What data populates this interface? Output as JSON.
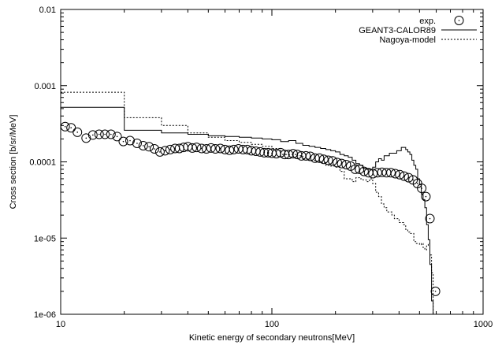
{
  "chart_data": {
    "type": "line",
    "title": "",
    "xlabel": "Kinetic energy of secondary neutrons[MeV]",
    "ylabel": "Cross section [b/sr/MeV]",
    "xscale": "log",
    "yscale": "log",
    "xlim": [
      10,
      1000
    ],
    "ylim": [
      1e-06,
      0.01
    ],
    "xticks": [
      {
        "v": 10,
        "label": "10"
      },
      {
        "v": 100,
        "label": "100"
      },
      {
        "v": 1000,
        "label": "1000"
      }
    ],
    "yticks": [
      {
        "v": 0.01,
        "label": "0.01"
      },
      {
        "v": 0.001,
        "label": "0.001"
      },
      {
        "v": 0.0001,
        "label": "0.0001"
      },
      {
        "v": 1e-05,
        "label": "1e-05"
      },
      {
        "v": 1e-06,
        "label": "1e-06"
      }
    ],
    "grid": false,
    "legend_position": "top-right",
    "series": [
      {
        "name": "exp.",
        "kind": "points",
        "points": [
          [
            10.5,
            0.00029
          ],
          [
            11.2,
            0.00028
          ],
          [
            12.0,
            0.000245
          ],
          [
            13.2,
            0.000205
          ],
          [
            14.2,
            0.000225
          ],
          [
            15.2,
            0.00023
          ],
          [
            16.2,
            0.00023
          ],
          [
            17.3,
            0.00023
          ],
          [
            18.5,
            0.000215
          ],
          [
            19.8,
            0.000185
          ],
          [
            21.3,
            0.00019
          ],
          [
            23.0,
            0.000175
          ],
          [
            24.6,
            0.000163
          ],
          [
            26.2,
            0.000158
          ],
          [
            27.8,
            0.000148
          ],
          [
            29.5,
            0.000135
          ],
          [
            31.2,
            0.00014
          ],
          [
            33.0,
            0.000145
          ],
          [
            34.8,
            0.00015
          ],
          [
            36.5,
            0.00015
          ],
          [
            38.2,
            0.000155
          ],
          [
            40.0,
            0.000158
          ],
          [
            42.0,
            0.000152
          ],
          [
            44.0,
            0.000155
          ],
          [
            46.5,
            0.00015
          ],
          [
            49.0,
            0.000148
          ],
          [
            51.5,
            0.000152
          ],
          [
            54.0,
            0.000148
          ],
          [
            57.0,
            0.00015
          ],
          [
            60.0,
            0.000145
          ],
          [
            63.0,
            0.000142
          ],
          [
            66.0,
            0.000145
          ],
          [
            69.5,
            0.000148
          ],
          [
            73.0,
            0.000145
          ],
          [
            76.5,
            0.000145
          ],
          [
            80.0,
            0.00014
          ],
          [
            84.0,
            0.000138
          ],
          [
            88.0,
            0.000135
          ],
          [
            92.0,
            0.000132
          ],
          [
            96.0,
            0.000132
          ],
          [
            100.0,
            0.00013
          ],
          [
            105.0,
            0.000128
          ],
          [
            110.0,
            0.000132
          ],
          [
            115.0,
            0.000125
          ],
          [
            120.0,
            0.000125
          ],
          [
            126.0,
            0.000128
          ],
          [
            132.0,
            0.000125
          ],
          [
            138.0,
            0.00012
          ],
          [
            145.0,
            0.00012
          ],
          [
            152.0,
            0.000118
          ],
          [
            160.0,
            0.000112
          ],
          [
            168.0,
            0.000112
          ],
          [
            176.0,
            0.000108
          ],
          [
            185.0,
            0.000105
          ],
          [
            194.0,
            0.000103
          ],
          [
            204.0,
            9.8e-05
          ],
          [
            214.0,
            9.5e-05
          ],
          [
            225.0,
            9.2e-05
          ],
          [
            236.0,
            8.8e-05
          ],
          [
            248.0,
            8e-05
          ],
          [
            260.0,
            8e-05
          ],
          [
            273.0,
            7.5e-05
          ],
          [
            287.0,
            7.2e-05
          ],
          [
            301.0,
            7e-05
          ],
          [
            316.0,
            7.2e-05
          ],
          [
            332.0,
            7.3e-05
          ],
          [
            349.0,
            7.2e-05
          ],
          [
            366.0,
            7.2e-05
          ],
          [
            384.0,
            7e-05
          ],
          [
            403.0,
            6.8e-05
          ],
          [
            423.0,
            6.5e-05
          ],
          [
            444.0,
            6.2e-05
          ],
          [
            466.0,
            5.8e-05
          ],
          [
            489.0,
            5.2e-05
          ],
          [
            512.0,
            4.5e-05
          ],
          [
            536.0,
            3.5e-05
          ],
          [
            560.0,
            1.8e-05
          ],
          [
            595.0,
            2e-06
          ]
        ]
      },
      {
        "name": "GEANT3-CALOR89",
        "kind": "steps",
        "style": "solid",
        "points": [
          [
            10,
            0.00052
          ],
          [
            20,
            0.00026
          ],
          [
            30,
            0.00024
          ],
          [
            40,
            0.00023
          ],
          [
            50,
            0.00022
          ],
          [
            60,
            0.000215
          ],
          [
            70,
            0.00021
          ],
          [
            80,
            0.000205
          ],
          [
            90,
            0.0002
          ],
          [
            100,
            0.000195
          ],
          [
            110,
            0.000185
          ],
          [
            120,
            0.00019
          ],
          [
            130,
            0.000175
          ],
          [
            140,
            0.000165
          ],
          [
            150,
            0.00016
          ],
          [
            160,
            0.000155
          ],
          [
            170,
            0.00015
          ],
          [
            180,
            0.000145
          ],
          [
            190,
            0.00014
          ],
          [
            200,
            0.000135
          ],
          [
            210,
            0.000125
          ],
          [
            220,
            0.00012
          ],
          [
            230,
            0.000115
          ],
          [
            240,
            0.000105
          ],
          [
            250,
            9.5e-05
          ],
          [
            260,
            9e-05
          ],
          [
            270,
            8.2e-05
          ],
          [
            280,
            8e-05
          ],
          [
            290,
            8e-05
          ],
          [
            300,
            8.5e-05
          ],
          [
            310,
            0.0001
          ],
          [
            320,
            0.00011
          ],
          [
            330,
            0.000105
          ],
          [
            340,
            0.00012
          ],
          [
            350,
            0.00012
          ],
          [
            360,
            0.00013
          ],
          [
            370,
            0.00013
          ],
          [
            380,
            0.00013
          ],
          [
            390,
            0.00014
          ],
          [
            400,
            0.00014
          ],
          [
            410,
            0.000155
          ],
          [
            420,
            0.000155
          ],
          [
            430,
            0.000145
          ],
          [
            440,
            0.000135
          ],
          [
            450,
            0.000125
          ],
          [
            460,
            0.000105
          ],
          [
            470,
            9e-05
          ],
          [
            480,
            8e-05
          ],
          [
            490,
            6e-05
          ],
          [
            500,
            5e-05
          ],
          [
            510,
            3.8e-05
          ],
          [
            520,
            3.2e-05
          ],
          [
            530,
            2.5e-05
          ],
          [
            540,
            1.5e-05
          ],
          [
            550,
            9.5e-06
          ],
          [
            560,
            4.5e-06
          ],
          [
            570,
            1.5e-06
          ]
        ],
        "end_x": 580
      },
      {
        "name": "Nagoya-model",
        "kind": "steps",
        "style": "dotted",
        "points": [
          [
            10,
            0.00082
          ],
          [
            20,
            0.00038
          ],
          [
            30,
            0.0003
          ],
          [
            40,
            0.00024
          ],
          [
            50,
            0.00021
          ],
          [
            60,
            0.00019
          ],
          [
            70,
            0.00018
          ],
          [
            80,
            0.00017
          ],
          [
            90,
            0.00016
          ],
          [
            100,
            0.00015
          ],
          [
            110,
            0.000125
          ],
          [
            120,
            0.000125
          ],
          [
            130,
            0.00012
          ],
          [
            140,
            0.00011
          ],
          [
            150,
            0.000105
          ],
          [
            160,
            0.0001
          ],
          [
            170,
            9.8e-05
          ],
          [
            180,
            9e-05
          ],
          [
            190,
            8.8e-05
          ],
          [
            200,
            8.5e-05
          ],
          [
            210,
            7.5e-05
          ],
          [
            220,
            6e-05
          ],
          [
            230,
            6e-05
          ],
          [
            240,
            5.5e-05
          ],
          [
            250,
            6.2e-05
          ],
          [
            260,
            6e-05
          ],
          [
            270,
            5.8e-05
          ],
          [
            280,
            5.5e-05
          ],
          [
            290,
            6e-05
          ],
          [
            300,
            5.2e-05
          ],
          [
            310,
            4e-05
          ],
          [
            320,
            3.5e-05
          ],
          [
            330,
            2.8e-05
          ],
          [
            340,
            2.5e-05
          ],
          [
            350,
            2.2e-05
          ],
          [
            360,
            2.2e-05
          ],
          [
            370,
            2e-05
          ],
          [
            380,
            1.8e-05
          ],
          [
            390,
            1.8e-05
          ],
          [
            400,
            1.6e-05
          ],
          [
            410,
            1.6e-05
          ],
          [
            420,
            1.5e-05
          ],
          [
            430,
            1.3e-05
          ],
          [
            440,
            1.2e-05
          ],
          [
            450,
            1.15e-05
          ],
          [
            460,
            1.15e-05
          ],
          [
            470,
            9e-06
          ],
          [
            480,
            8.5e-06
          ],
          [
            490,
            8.5e-06
          ],
          [
            500,
            8.2e-06
          ],
          [
            510,
            8.5e-06
          ],
          [
            520,
            7.5e-06
          ],
          [
            530,
            7e-06
          ],
          [
            540,
            8e-06
          ],
          [
            550,
            8.5e-06
          ],
          [
            560,
            6e-06
          ],
          [
            570,
            3.5e-06
          ]
        ],
        "end_x": 580
      }
    ]
  }
}
